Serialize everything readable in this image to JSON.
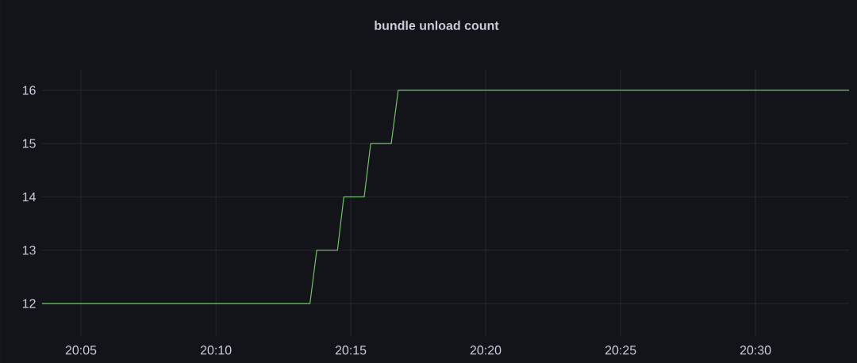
{
  "chart_data": {
    "type": "line",
    "title": "bundle unload count",
    "x": [
      20.0593,
      20.2248,
      20.229,
      20.2418,
      20.2457,
      20.2583,
      20.2623,
      20.275,
      20.2793,
      20.5578
    ],
    "series": [
      {
        "color": "#73bf69",
        "values": [
          12,
          12,
          13,
          13,
          14,
          14,
          15,
          15,
          16,
          16
        ]
      }
    ],
    "xlim": [
      20.0593,
      20.5578
    ],
    "xticks": [
      {
        "value": 20.0833,
        "label": "20:05"
      },
      {
        "value": 20.1667,
        "label": "20:10"
      },
      {
        "value": 20.25,
        "label": "20:15"
      },
      {
        "value": 20.3333,
        "label": "20:20"
      },
      {
        "value": 20.4167,
        "label": "20:25"
      },
      {
        "value": 20.5,
        "label": "20:30"
      }
    ],
    "ylim": [
      11.38,
      16.4
    ],
    "yticks": [
      12,
      13,
      14,
      15,
      16
    ],
    "grid": true,
    "marker": "none",
    "line_style": "solid"
  }
}
